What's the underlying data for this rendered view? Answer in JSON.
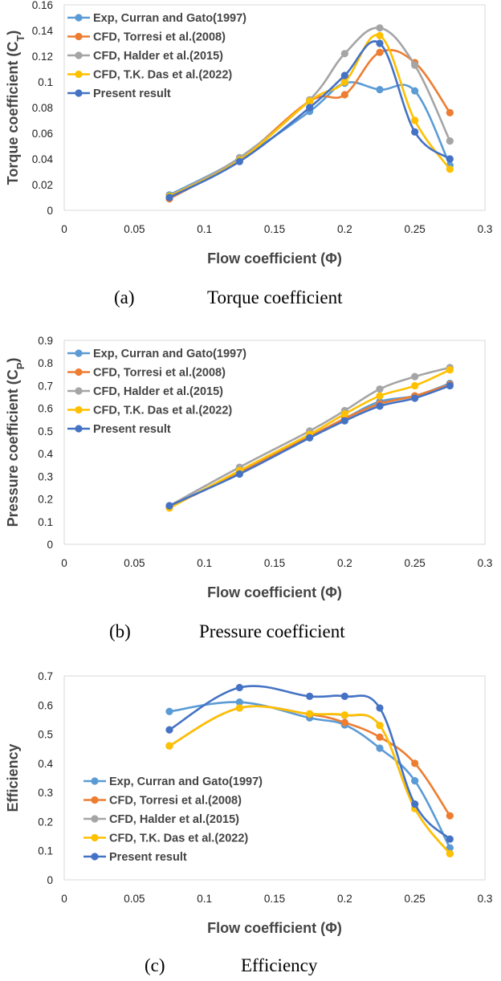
{
  "chart_data": [
    {
      "type": "line",
      "panel": "a",
      "caption_letter": "(a)",
      "caption_name": "Torque coefficient",
      "xlabel": "Flow coefficient (Φ)",
      "ylabel": "Torque coefficient (C",
      "ylabel_sub": "T",
      "ylabel_close": ")",
      "xlim": [
        0,
        0.3
      ],
      "ylim": [
        0,
        0.16
      ],
      "xticks": [
        0,
        0.05,
        0.1,
        0.15,
        0.2,
        0.25,
        0.3
      ],
      "xtick_labels": [
        "0",
        "0.05",
        "0.1",
        "0.15",
        "0.2",
        "0.25",
        "0.3"
      ],
      "yticks": [
        0,
        0.02,
        0.04,
        0.06,
        0.08,
        0.1,
        0.12,
        0.14,
        0.16
      ],
      "ytick_labels": [
        "0",
        "0.02",
        "0.04",
        "0.06",
        "0.08",
        "0.1",
        "0.12",
        "0.14",
        "0.16"
      ],
      "grid": false,
      "legend_position": "top-left",
      "series": [
        {
          "name": "Exp, Curran and Gato(1997)",
          "color": "#5B9BD5",
          "x": [
            0.075,
            0.125,
            0.175,
            0.2,
            0.225,
            0.25,
            0.275
          ],
          "y": [
            0.012,
            0.04,
            0.077,
            0.099,
            0.094,
            0.093,
            0.035
          ]
        },
        {
          "name": "CFD, Torresi et al.(2008)",
          "color": "#ED7D31",
          "x": [
            0.075,
            0.125,
            0.175,
            0.2,
            0.225,
            0.25,
            0.275
          ],
          "y": [
            0.009,
            0.04,
            0.085,
            0.09,
            0.123,
            0.115,
            0.076
          ]
        },
        {
          "name": "CFD, Halder et al.(2015)",
          "color": "#A5A5A5",
          "x": [
            0.075,
            0.125,
            0.175,
            0.2,
            0.225,
            0.25,
            0.275
          ],
          "y": [
            0.011,
            0.041,
            0.086,
            0.122,
            0.142,
            0.113,
            0.054
          ]
        },
        {
          "name": "CFD, T.K. Das et al.(2022)",
          "color": "#FFC000",
          "x": [
            0.075,
            0.125,
            0.175,
            0.2,
            0.225,
            0.25,
            0.275
          ],
          "y": [
            0.011,
            0.039,
            0.085,
            0.1,
            0.136,
            0.07,
            0.032
          ]
        },
        {
          "name": "Present result",
          "color": "#4472C4",
          "x": [
            0.075,
            0.125,
            0.175,
            0.2,
            0.225,
            0.25,
            0.275
          ],
          "y": [
            0.01,
            0.038,
            0.08,
            0.105,
            0.13,
            0.061,
            0.04
          ]
        }
      ]
    },
    {
      "type": "line",
      "panel": "b",
      "caption_letter": "(b)",
      "caption_name": "Pressure coefficient",
      "xlabel": "Flow coefficient (Φ)",
      "ylabel": "Pressure coefficient (C",
      "ylabel_sub": "P",
      "ylabel_close": ")",
      "xlim": [
        0,
        0.3
      ],
      "ylim": [
        0,
        0.9
      ],
      "xticks": [
        0,
        0.05,
        0.1,
        0.15,
        0.2,
        0.25,
        0.3
      ],
      "xtick_labels": [
        "0",
        "0.05",
        "0.1",
        "0.15",
        "0.2",
        "0.25",
        "0.3"
      ],
      "yticks": [
        0,
        0.1,
        0.2,
        0.3,
        0.4,
        0.5,
        0.6,
        0.7,
        0.8,
        0.9
      ],
      "ytick_labels": [
        "0",
        "0.1",
        "0.2",
        "0.3",
        "0.4",
        "0.5",
        "0.6",
        "0.7",
        "0.8",
        "0.9"
      ],
      "grid": false,
      "legend_position": "top-left",
      "series": [
        {
          "name": "Exp, Curran and Gato(1997)",
          "color": "#5B9BD5",
          "x": [
            0.075,
            0.125,
            0.175,
            0.2,
            0.225,
            0.25,
            0.275
          ],
          "y": [
            0.165,
            0.32,
            0.475,
            0.555,
            0.63,
            0.655,
            0.71
          ]
        },
        {
          "name": "CFD, Torresi et al.(2008)",
          "color": "#ED7D31",
          "x": [
            0.075,
            0.125,
            0.175,
            0.2,
            0.225,
            0.25,
            0.275
          ],
          "y": [
            0.165,
            0.315,
            0.475,
            0.555,
            0.62,
            0.655,
            0.705
          ]
        },
        {
          "name": "CFD, Halder et al.(2015)",
          "color": "#A5A5A5",
          "x": [
            0.075,
            0.125,
            0.175,
            0.2,
            0.225,
            0.25,
            0.275
          ],
          "y": [
            0.17,
            0.34,
            0.5,
            0.59,
            0.685,
            0.74,
            0.78
          ]
        },
        {
          "name": "CFD, T.K. Das et al.(2022)",
          "color": "#FFC000",
          "x": [
            0.075,
            0.125,
            0.175,
            0.2,
            0.225,
            0.25,
            0.275
          ],
          "y": [
            0.16,
            0.325,
            0.485,
            0.575,
            0.655,
            0.7,
            0.77
          ]
        },
        {
          "name": "Present result",
          "color": "#4472C4",
          "x": [
            0.075,
            0.125,
            0.175,
            0.2,
            0.225,
            0.25,
            0.275
          ],
          "y": [
            0.17,
            0.31,
            0.47,
            0.545,
            0.61,
            0.645,
            0.7
          ]
        }
      ]
    },
    {
      "type": "line",
      "panel": "c",
      "caption_letter": "(c)",
      "caption_name": "Efficiency",
      "xlabel": "Flow coefficient (Φ)",
      "ylabel": "Efficiency",
      "ylabel_sub": "",
      "ylabel_close": "",
      "xlim": [
        0,
        0.3
      ],
      "ylim": [
        0,
        0.7
      ],
      "xticks": [
        0,
        0.05,
        0.1,
        0.15,
        0.2,
        0.25,
        0.3
      ],
      "xtick_labels": [
        "0",
        "0.05",
        "0.1",
        "0.15",
        "0.2",
        "0.25",
        "0.3"
      ],
      "yticks": [
        0,
        0.1,
        0.2,
        0.3,
        0.4,
        0.5,
        0.6,
        0.7
      ],
      "ytick_labels": [
        "0",
        "0.1",
        "0.2",
        "0.3",
        "0.4",
        "0.5",
        "0.6",
        "0.7"
      ],
      "grid": false,
      "legend_position": "bottom-left",
      "series": [
        {
          "name": "Exp, Curran and Gato(1997)",
          "color": "#5B9BD5",
          "x": [
            0.075,
            0.125,
            0.175,
            0.2,
            0.225,
            0.25,
            0.275
          ],
          "y": [
            0.578,
            0.61,
            0.556,
            0.532,
            0.452,
            0.34,
            0.11
          ]
        },
        {
          "name": "CFD, Torresi et al.(2008)",
          "color": "#ED7D31",
          "x": [
            0.075,
            0.125,
            0.175,
            0.2,
            0.225,
            0.25,
            0.275
          ],
          "y": [
            0.46,
            0.59,
            0.568,
            0.54,
            0.49,
            0.4,
            0.22
          ]
        },
        {
          "name": "CFD, Halder et al.(2015)",
          "color": "#A5A5A5",
          "x": [
            0.075,
            0.125,
            0.175,
            0.2,
            0.225,
            0.25,
            0.275
          ],
          "y": [
            0.46,
            0.59,
            0.57,
            0.565,
            0.53,
            0.245,
            0.09
          ]
        },
        {
          "name": "CFD, T.K. Das et al.(2022)",
          "color": "#FFC000",
          "x": [
            0.075,
            0.125,
            0.175,
            0.2,
            0.225,
            0.25,
            0.275
          ],
          "y": [
            0.46,
            0.59,
            0.57,
            0.566,
            0.53,
            0.245,
            0.09
          ]
        },
        {
          "name": "Present result",
          "color": "#4472C4",
          "x": [
            0.075,
            0.125,
            0.175,
            0.2,
            0.225,
            0.25,
            0.275
          ],
          "y": [
            0.515,
            0.66,
            0.63,
            0.63,
            0.59,
            0.26,
            0.14
          ]
        }
      ]
    }
  ]
}
